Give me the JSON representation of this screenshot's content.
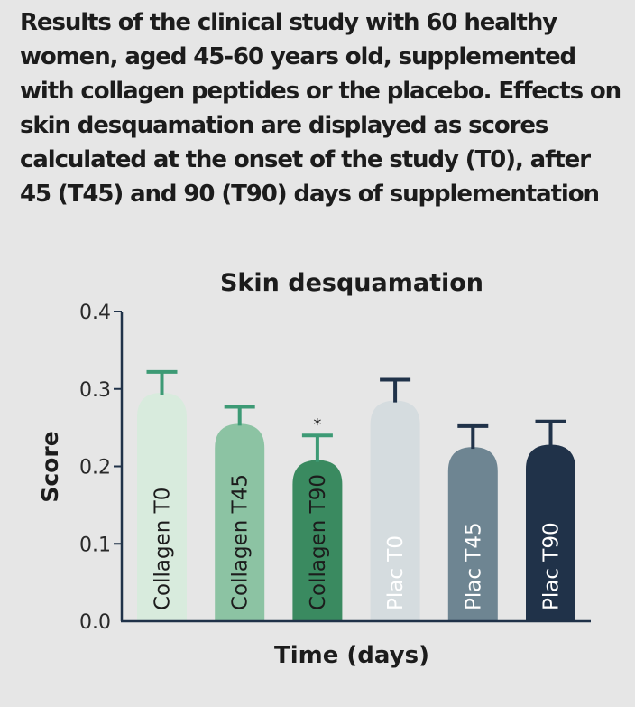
{
  "caption": "Results of the clinical study with 60 healthy women, aged 45-60 years old, supplemented with collagen peptides or the placebo. Effects on skin desquamation are displayed as scores calculated at the onset of the study (T0), after 45 (T45) and 90 (T90) days of supplementation",
  "chart_data": {
    "type": "bar",
    "title": "Skin desquamation",
    "xlabel": "Time (days)",
    "ylabel": "Score",
    "ylim": [
      0.0,
      0.4
    ],
    "yticks": [
      "0.0",
      "0.1",
      "0.2",
      "0.3",
      "0.4"
    ],
    "grid": false,
    "legend": "none",
    "categories": [
      "Collagen T0",
      "Collagen T45",
      "Collagen T90",
      "Plac T0",
      "Plac T45",
      "Plac T90"
    ],
    "values": [
      0.295,
      0.255,
      0.208,
      0.285,
      0.225,
      0.228
    ],
    "error_upper": [
      0.322,
      0.277,
      0.24,
      0.312,
      0.252,
      0.258
    ],
    "annotations": [
      "",
      "",
      "*",
      "",
      "",
      ""
    ],
    "colors": [
      "#d8ebdd",
      "#8cc3a3",
      "#3a8a60",
      "#d5dcdf",
      "#6e8592",
      "#203249"
    ],
    "error_colors": [
      "#3d9a75",
      "#3d9a75",
      "#3d9a75",
      "#203249",
      "#203249",
      "#203249"
    ],
    "label_colors": [
      "#1c1c1c",
      "#1c1c1c",
      "#1c1c1c",
      "#ffffff",
      "#ffffff",
      "#ffffff"
    ]
  }
}
